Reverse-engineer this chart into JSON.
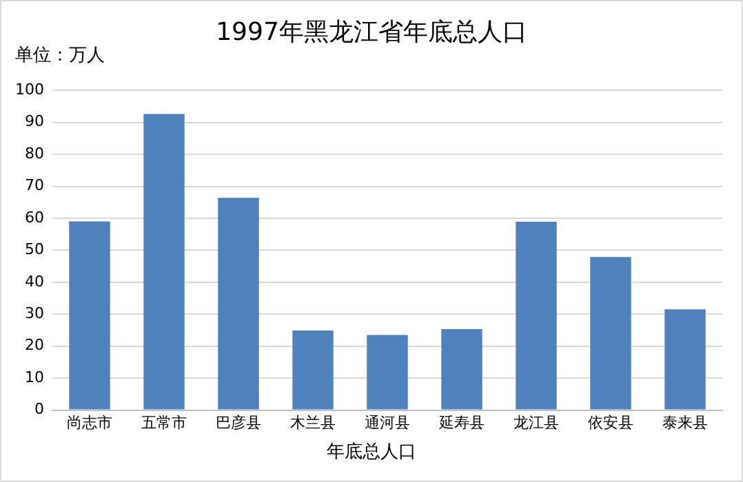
{
  "chart_data": {
    "type": "bar",
    "title": "1997年黑龙江省年底总人口",
    "ylabel": "单位：万人",
    "xlabel": "年底总人口",
    "categories": [
      "尚志市",
      "五常市",
      "巴彦县",
      "木兰县",
      "通河县",
      "延寿县",
      "龙江县",
      "依安县",
      "泰来县"
    ],
    "values": [
      59,
      92.6,
      66.4,
      24.9,
      23.5,
      25.3,
      58.9,
      47.9,
      31.5
    ],
    "color": "#4f81bd",
    "ylim": [
      0,
      100
    ],
    "yticks": [
      0,
      10,
      20,
      30,
      40,
      50,
      60,
      70,
      80,
      90,
      100
    ],
    "grid": "y"
  }
}
